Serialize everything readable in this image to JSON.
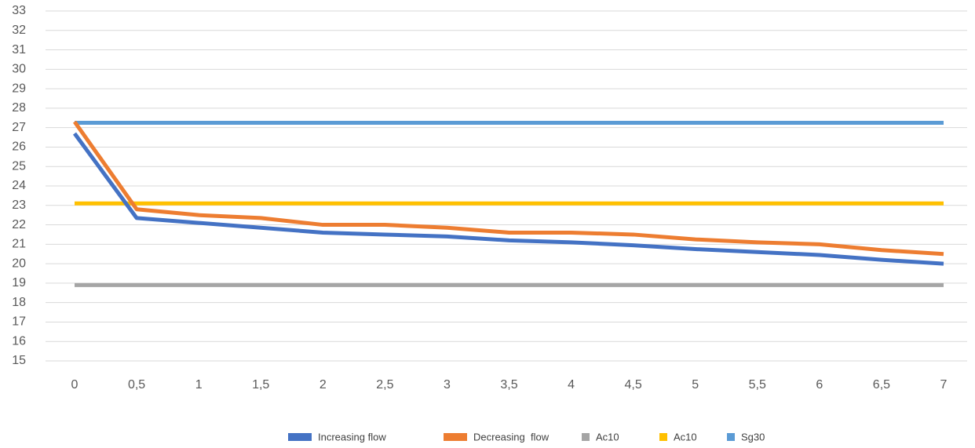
{
  "chart_data": {
    "type": "line",
    "categories": [
      "0",
      "0,5",
      "1",
      "1,5",
      "2",
      "2,5",
      "3",
      "3,5",
      "4",
      "4,5",
      "5",
      "5,5",
      "6",
      "6,5",
      "7"
    ],
    "series": [
      {
        "name": "Increasing flow",
        "color": "#4472c4",
        "values": [
          26.7,
          22.35,
          22.1,
          21.85,
          21.6,
          21.5,
          21.4,
          21.2,
          21.1,
          20.95,
          20.75,
          20.6,
          20.45,
          20.2,
          20.0
        ]
      },
      {
        "name": "Decreasing  flow",
        "color": "#ed7d31",
        "values": [
          27.3,
          22.8,
          22.5,
          22.35,
          22.0,
          22.0,
          21.85,
          21.6,
          21.6,
          21.5,
          21.25,
          21.1,
          21.0,
          20.7,
          20.5
        ]
      },
      {
        "name": "Ac10",
        "color": "#a5a5a5",
        "values": [
          18.9,
          18.9,
          18.9,
          18.9,
          18.9,
          18.9,
          18.9,
          18.9,
          18.9,
          18.9,
          18.9,
          18.9,
          18.9,
          18.9,
          18.9
        ]
      },
      {
        "name": "Ac10",
        "color": "#ffc000",
        "values": [
          23.1,
          23.1,
          23.1,
          23.1,
          23.1,
          23.1,
          23.1,
          23.1,
          23.1,
          23.1,
          23.1,
          23.1,
          23.1,
          23.1,
          23.1
        ]
      },
      {
        "name": "Sg30",
        "color": "#5b9bd5",
        "values": [
          27.25,
          27.25,
          27.25,
          27.25,
          27.25,
          27.25,
          27.25,
          27.25,
          27.25,
          27.25,
          27.25,
          27.25,
          27.25,
          27.25,
          27.25
        ]
      }
    ],
    "ylim": [
      15,
      33
    ],
    "yticks": [
      15,
      16,
      17,
      18,
      19,
      20,
      21,
      22,
      23,
      24,
      25,
      26,
      27,
      28,
      29,
      30,
      31,
      32,
      33
    ],
    "grid": true
  }
}
